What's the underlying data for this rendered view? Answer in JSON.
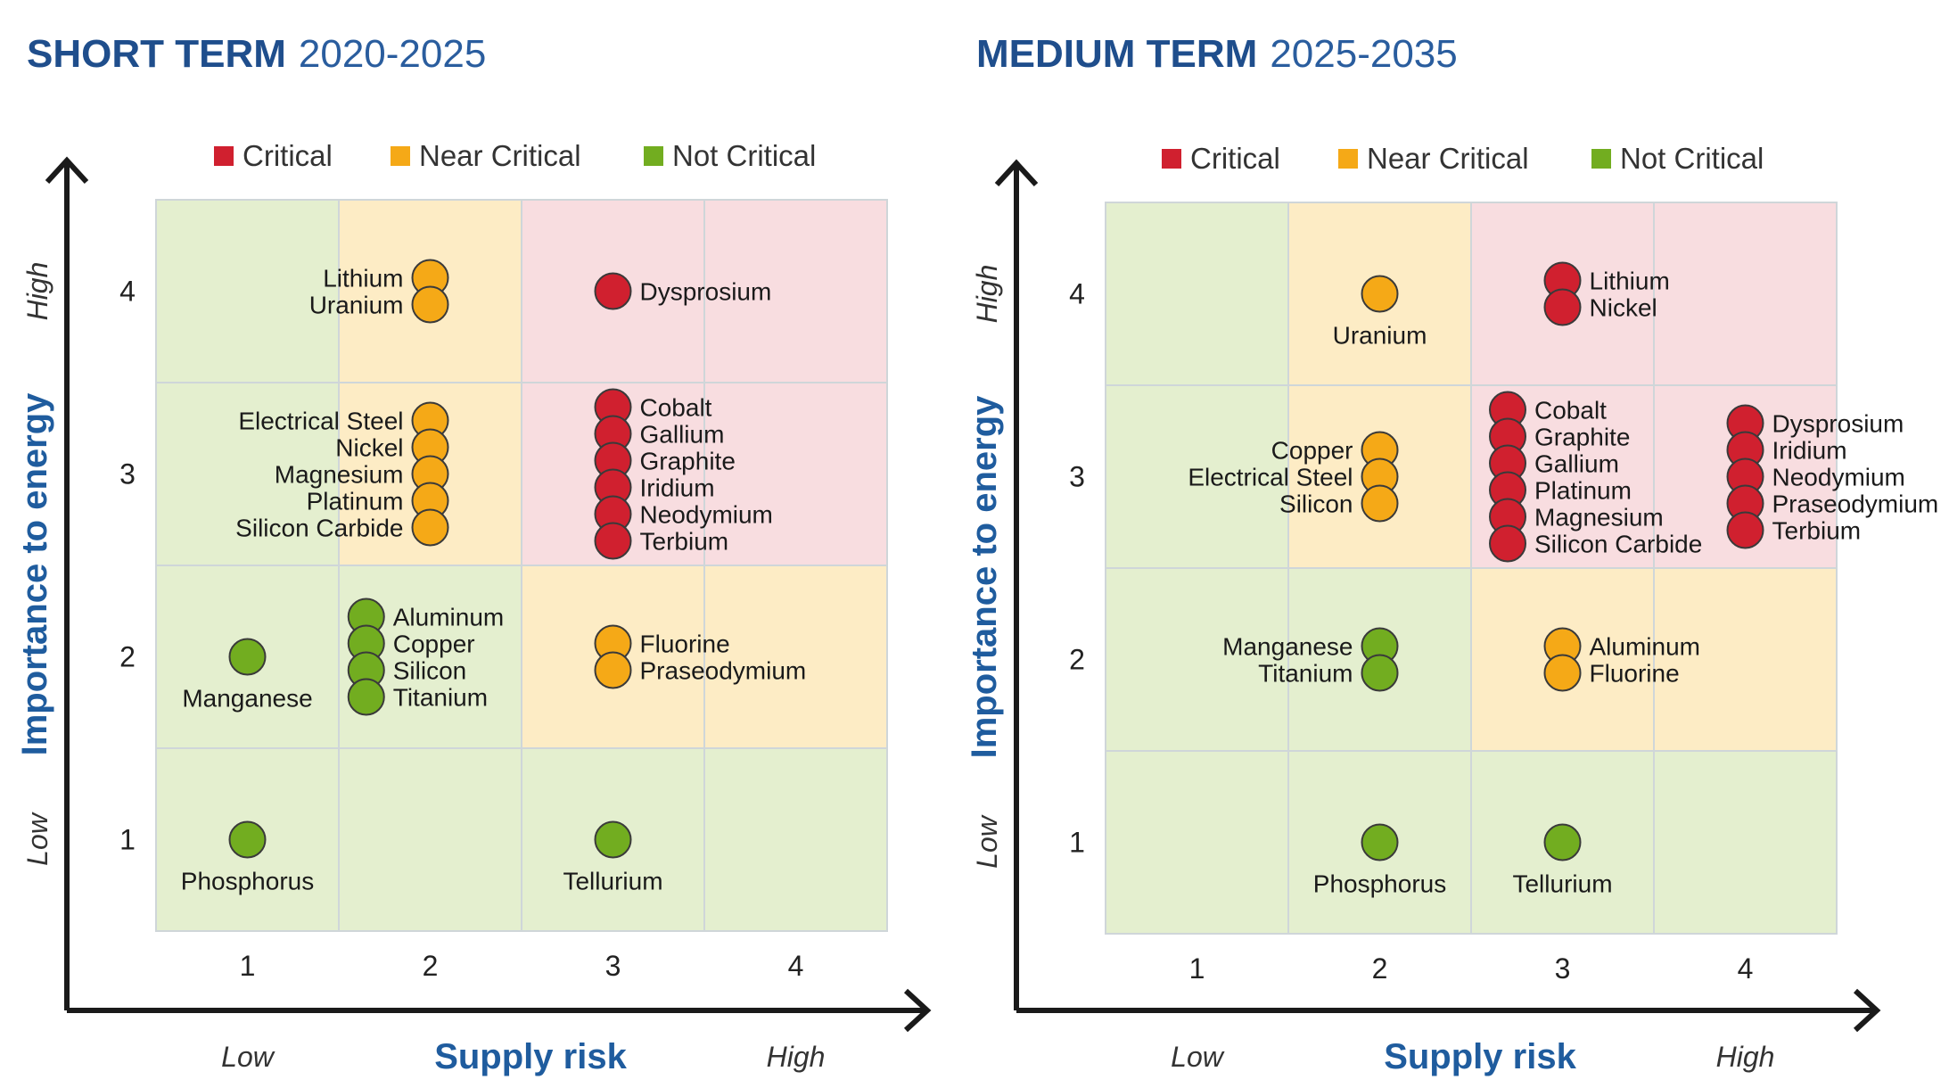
{
  "colors": {
    "critical": "#d0202f",
    "near_critical": "#f5a917",
    "not_critical": "#72ad20",
    "critical_bg": "#f8dde0",
    "near_critical_bg": "#fdecc5",
    "not_critical_bg": "#e4efcf",
    "title": "#1f4e8c",
    "axis_title": "#1f5c9e"
  },
  "chart_data": [
    {
      "type": "scatter",
      "title_bold": "SHORT TERM",
      "title_light": "2020-2025",
      "xlabel": "Supply risk",
      "ylabel": "Importance to energy",
      "x_low": "Low",
      "x_high": "High",
      "y_low": "Low",
      "y_high": "High",
      "x_ticks": [
        "1",
        "2",
        "3",
        "4"
      ],
      "y_ticks": [
        "1",
        "2",
        "3",
        "4"
      ],
      "xlim": [
        0.5,
        4.5
      ],
      "ylim": [
        0.5,
        4.5
      ],
      "legend": [
        {
          "key": "critical",
          "label": "Critical"
        },
        {
          "key": "near_critical",
          "label": "Near Critical"
        },
        {
          "key": "not_critical",
          "label": "Not Critical"
        }
      ],
      "cell_status": [
        [
          "not_critical",
          "not_critical",
          "not_critical",
          "not_critical"
        ],
        [
          "not_critical",
          "not_critical",
          "near_critical",
          "near_critical"
        ],
        [
          "not_critical",
          "near_critical",
          "critical",
          "critical"
        ],
        [
          "not_critical",
          "near_critical",
          "critical",
          "critical"
        ]
      ],
      "groups": [
        {
          "x": 2,
          "y": 4,
          "status": "near_critical",
          "label_side": "left",
          "materials": [
            "Lithium",
            "Uranium"
          ]
        },
        {
          "x": 3,
          "y": 4,
          "status": "critical",
          "label_side": "right",
          "materials": [
            "Dysprosium"
          ]
        },
        {
          "x": 2,
          "y": 3,
          "status": "near_critical",
          "label_side": "left",
          "materials": [
            "Electrical Steel",
            "Nickel",
            "Magnesium",
            "Platinum",
            "Silicon Carbide"
          ]
        },
        {
          "x": 3,
          "y": 3,
          "status": "critical",
          "label_side": "right",
          "materials": [
            "Cobalt",
            "Gallium",
            "Graphite",
            "Iridium",
            "Neodymium",
            "Terbium"
          ]
        },
        {
          "x": 1,
          "y": 2,
          "status": "not_critical",
          "label_side": "below",
          "materials": [
            "Manganese"
          ]
        },
        {
          "x": 1.65,
          "y": 2,
          "status": "not_critical",
          "label_side": "right",
          "materials": [
            "Aluminum",
            "Copper",
            "Silicon",
            "Titanium"
          ]
        },
        {
          "x": 3,
          "y": 2,
          "status": "near_critical",
          "label_side": "right",
          "materials": [
            "Fluorine",
            "Praseodymium"
          ]
        },
        {
          "x": 1,
          "y": 1,
          "status": "not_critical",
          "label_side": "below",
          "materials": [
            "Phosphorus"
          ]
        },
        {
          "x": 3,
          "y": 1,
          "status": "not_critical",
          "label_side": "below",
          "materials": [
            "Tellurium"
          ]
        }
      ]
    },
    {
      "type": "scatter",
      "title_bold": "MEDIUM TERM",
      "title_light": "2025-2035",
      "xlabel": "Supply risk",
      "ylabel": "Importance to energy",
      "x_low": "Low",
      "x_high": "High",
      "y_low": "Low",
      "y_high": "High",
      "x_ticks": [
        "1",
        "2",
        "3",
        "4"
      ],
      "y_ticks": [
        "1",
        "2",
        "3",
        "4"
      ],
      "xlim": [
        0.5,
        4.5
      ],
      "ylim": [
        0.5,
        4.5
      ],
      "legend": [
        {
          "key": "critical",
          "label": "Critical"
        },
        {
          "key": "near_critical",
          "label": "Near Critical"
        },
        {
          "key": "not_critical",
          "label": "Not Critical"
        }
      ],
      "cell_status": [
        [
          "not_critical",
          "not_critical",
          "not_critical",
          "not_critical"
        ],
        [
          "not_critical",
          "not_critical",
          "near_critical",
          "near_critical"
        ],
        [
          "not_critical",
          "near_critical",
          "critical",
          "critical"
        ],
        [
          "not_critical",
          "near_critical",
          "critical",
          "critical"
        ]
      ],
      "groups": [
        {
          "x": 2,
          "y": 4,
          "status": "near_critical",
          "label_side": "below",
          "materials": [
            "Uranium"
          ]
        },
        {
          "x": 3,
          "y": 4,
          "status": "critical",
          "label_side": "right",
          "materials": [
            "Lithium",
            "Nickel"
          ]
        },
        {
          "x": 2,
          "y": 3,
          "status": "near_critical",
          "label_side": "left",
          "materials": [
            "Copper",
            "Electrical Steel",
            "Silicon"
          ]
        },
        {
          "x": 2.7,
          "y": 3,
          "status": "critical",
          "label_side": "right",
          "materials": [
            "Cobalt",
            "Graphite",
            "Gallium",
            "Platinum",
            "Magnesium",
            "Silicon Carbide"
          ]
        },
        {
          "x": 4,
          "y": 3,
          "status": "critical",
          "label_side": "right",
          "materials": [
            "Dysprosium",
            "Iridium",
            "Neodymium",
            "Praseodymium",
            "Terbium"
          ]
        },
        {
          "x": 2,
          "y": 2,
          "status": "not_critical",
          "label_side": "left",
          "materials": [
            "Manganese",
            "Titanium"
          ]
        },
        {
          "x": 3,
          "y": 2,
          "status": "near_critical",
          "label_side": "right",
          "materials": [
            "Aluminum",
            "Fluorine"
          ]
        },
        {
          "x": 2,
          "y": 1,
          "status": "not_critical",
          "label_side": "below",
          "materials": [
            "Phosphorus"
          ]
        },
        {
          "x": 3,
          "y": 1,
          "status": "not_critical",
          "label_side": "below",
          "materials": [
            "Tellurium"
          ]
        }
      ]
    }
  ]
}
